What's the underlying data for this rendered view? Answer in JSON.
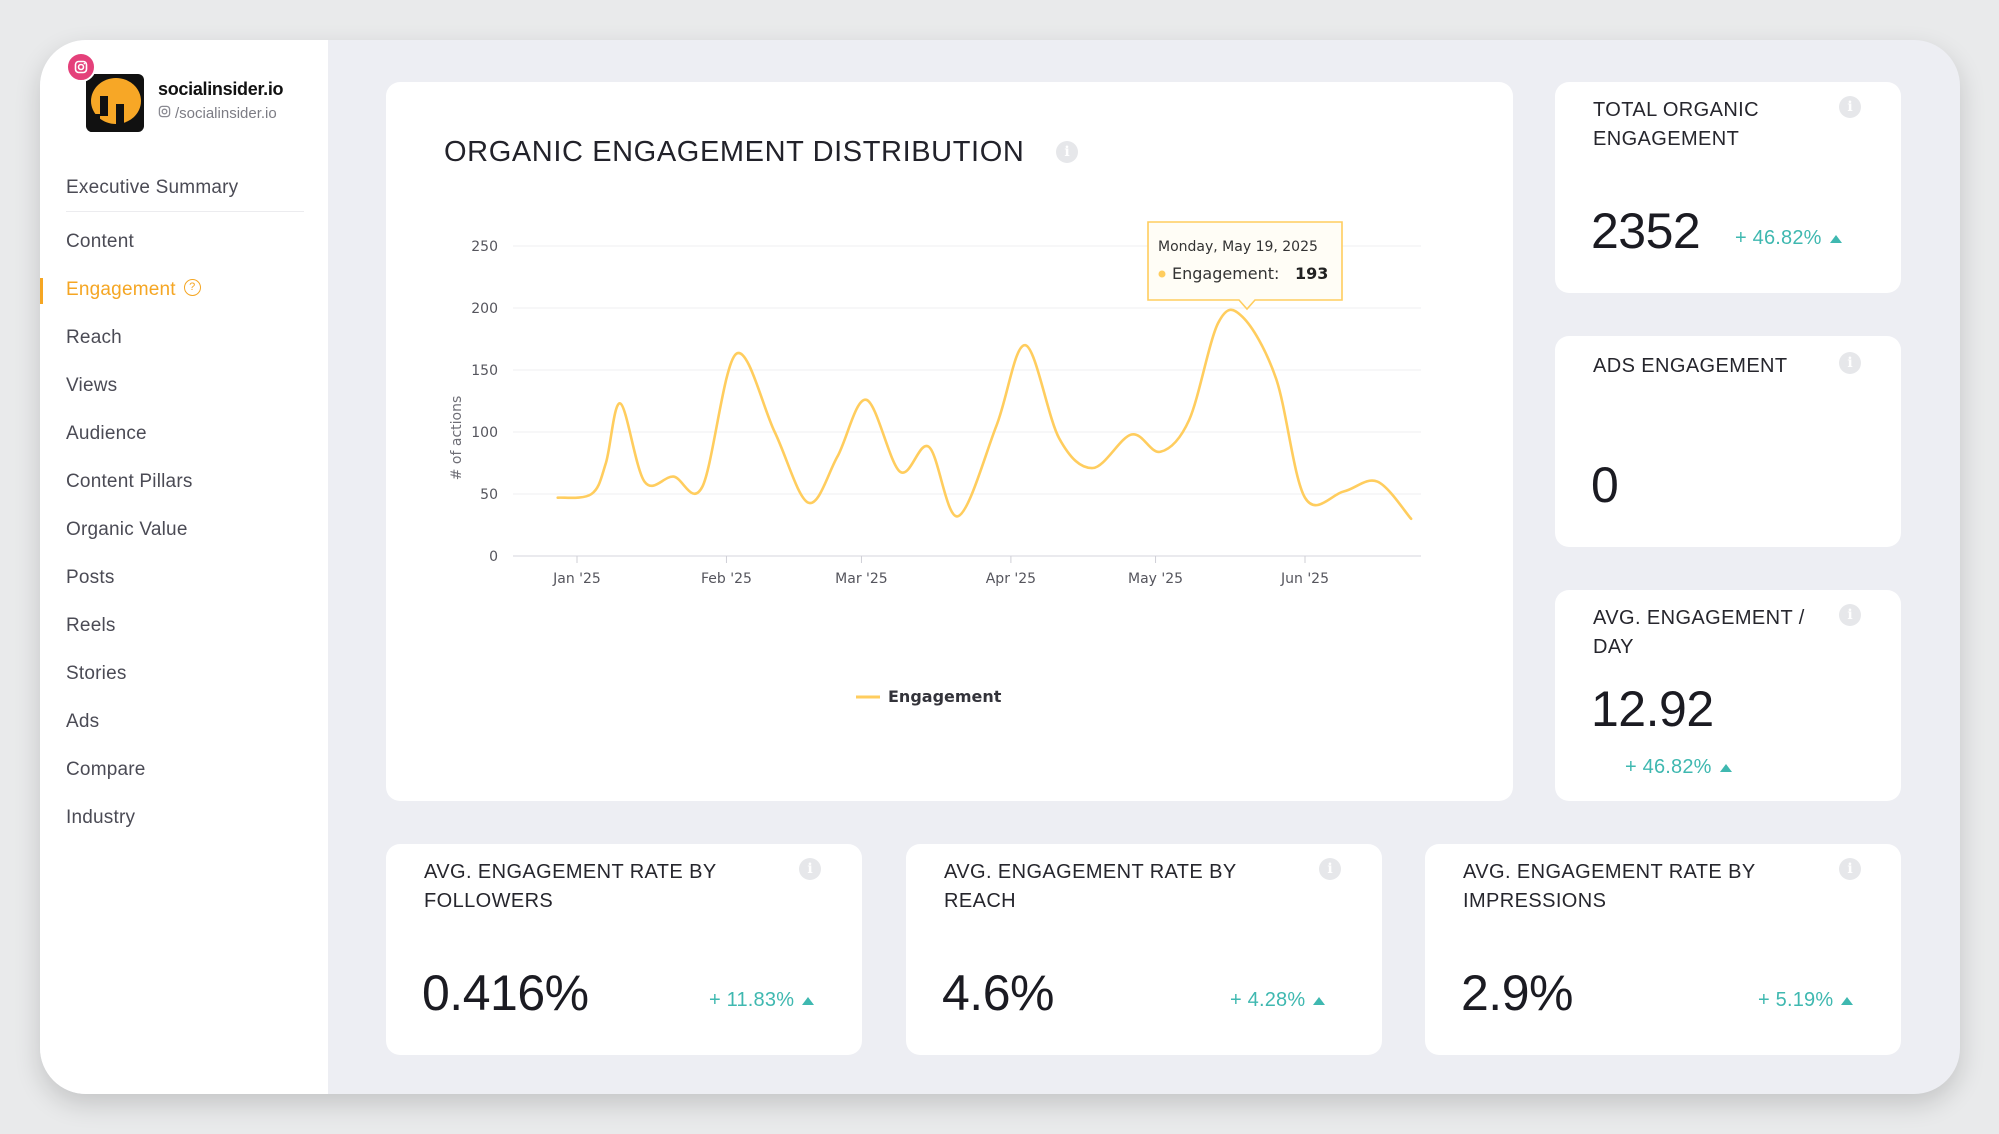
{
  "brand": {
    "name": "socialinsider.io",
    "handle": "/socialinsider.io"
  },
  "nav": {
    "items": [
      {
        "label": "Executive Summary"
      },
      {
        "label": "Content"
      },
      {
        "label": "Engagement",
        "active": true
      },
      {
        "label": "Reach"
      },
      {
        "label": "Views"
      },
      {
        "label": "Audience"
      },
      {
        "label": "Content Pillars"
      },
      {
        "label": "Organic Value"
      },
      {
        "label": "Posts"
      },
      {
        "label": "Reels"
      },
      {
        "label": "Stories"
      },
      {
        "label": "Ads"
      },
      {
        "label": "Compare"
      },
      {
        "label": "Industry"
      }
    ]
  },
  "chart_card": {
    "title": "ORGANIC ENGAGEMENT DISTRIBUTION",
    "tooltip": {
      "date": "Monday, May 19, 2025",
      "series_label": "Engagement:",
      "value": "193"
    }
  },
  "chart_data": {
    "type": "line",
    "title": "ORGANIC ENGAGEMENT DISTRIBUTION",
    "xlabel": "",
    "ylabel": "# of actions",
    "ylim": [
      0,
      250
    ],
    "yticks": [
      0,
      50,
      100,
      150,
      200,
      250
    ],
    "x_tick_labels": [
      "Jan '25",
      "Feb '25",
      "Mar '25",
      "Apr '25",
      "May '25",
      "Jun '25"
    ],
    "legend": "bottom-center",
    "grid": true,
    "series": [
      {
        "name": "Engagement",
        "color": "#ffcd5e",
        "points": [
          {
            "date": "2024-12-28",
            "value": 47
          },
          {
            "date": "2025-01-04",
            "value": 50
          },
          {
            "date": "2025-01-07",
            "value": 75
          },
          {
            "date": "2025-01-10",
            "value": 123
          },
          {
            "date": "2025-01-15",
            "value": 60
          },
          {
            "date": "2025-01-21",
            "value": 64
          },
          {
            "date": "2025-01-27",
            "value": 56
          },
          {
            "date": "2025-02-03",
            "value": 163
          },
          {
            "date": "2025-02-11",
            "value": 100
          },
          {
            "date": "2025-02-18",
            "value": 43
          },
          {
            "date": "2025-02-24",
            "value": 80
          },
          {
            "date": "2025-03-02",
            "value": 126
          },
          {
            "date": "2025-03-09",
            "value": 68
          },
          {
            "date": "2025-03-15",
            "value": 88
          },
          {
            "date": "2025-03-21",
            "value": 32
          },
          {
            "date": "2025-03-29",
            "value": 105
          },
          {
            "date": "2025-04-04",
            "value": 170
          },
          {
            "date": "2025-04-11",
            "value": 95
          },
          {
            "date": "2025-04-18",
            "value": 71
          },
          {
            "date": "2025-04-26",
            "value": 98
          },
          {
            "date": "2025-05-02",
            "value": 84
          },
          {
            "date": "2025-05-08",
            "value": 110
          },
          {
            "date": "2025-05-14",
            "value": 188
          },
          {
            "date": "2025-05-19",
            "value": 193
          },
          {
            "date": "2025-05-26",
            "value": 143
          },
          {
            "date": "2025-06-01",
            "value": 47
          },
          {
            "date": "2025-06-09",
            "value": 52
          },
          {
            "date": "2025-06-16",
            "value": 60
          },
          {
            "date": "2025-06-23",
            "value": 30
          }
        ]
      }
    ]
  },
  "kpi_total": {
    "title": "TOTAL ORGANIC ENGAGEMENT",
    "value": "2352",
    "delta": "+ 46.82%"
  },
  "kpi_ads": {
    "title": "ADS ENGAGEMENT",
    "value": "0"
  },
  "kpi_avg_day": {
    "title": "AVG. ENGAGEMENT / DAY",
    "value": "12.92",
    "delta": "+ 46.82%"
  },
  "kpi_followers": {
    "title": "AVG. ENGAGEMENT RATE BY FOLLOWERS",
    "value": "0.416%",
    "delta": "+ 11.83%"
  },
  "kpi_reach": {
    "title": "AVG. ENGAGEMENT RATE BY REACH",
    "value": "4.6%",
    "delta": "+ 4.28%"
  },
  "kpi_impressions": {
    "title": "AVG. ENGAGEMENT RATE BY IMPRESSIONS",
    "value": "2.9%",
    "delta": "+ 5.19%"
  },
  "colors": {
    "accent": "#f5a623",
    "positive": "#3fb8b0",
    "line": "#ffcd5e",
    "instagram": "#e4407a"
  }
}
